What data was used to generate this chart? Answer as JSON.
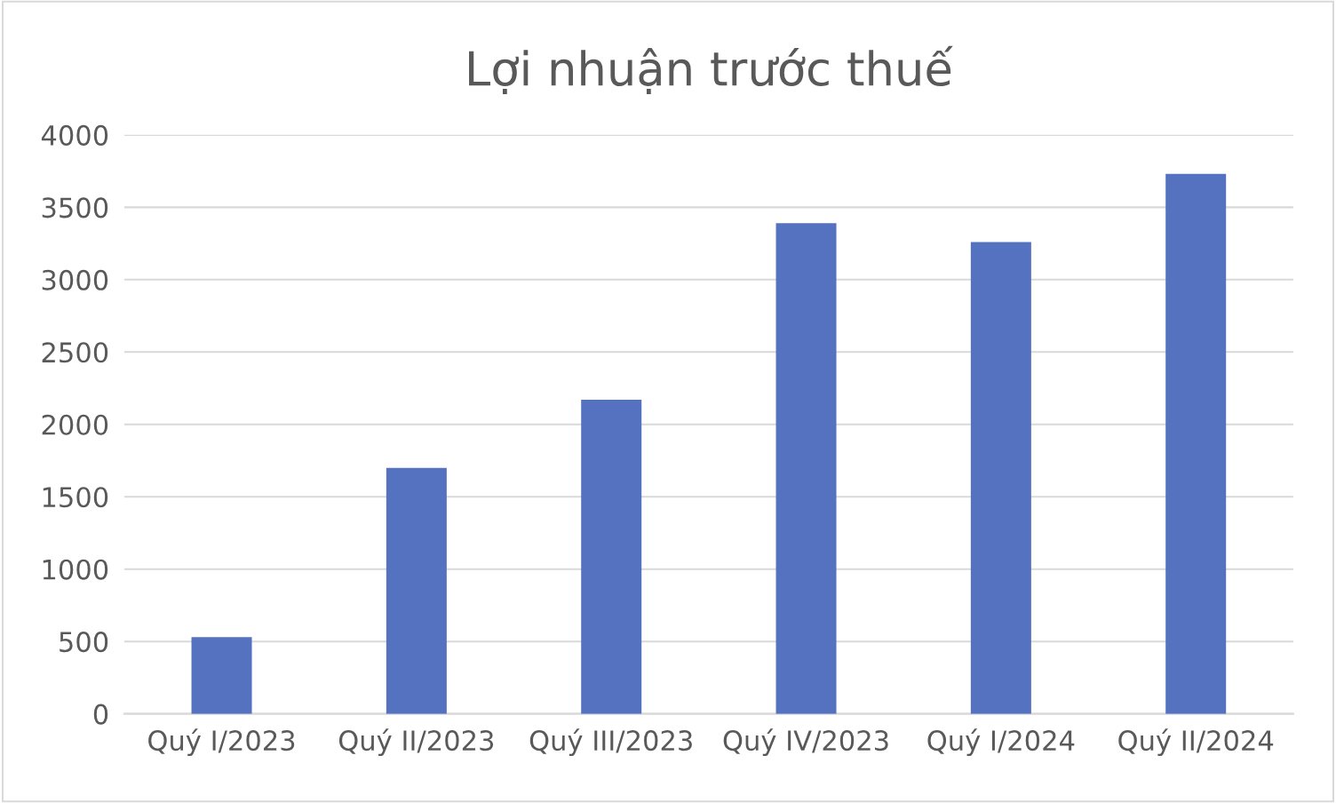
{
  "chart_data": {
    "type": "bar",
    "title": "Lợi nhuận trước thuế",
    "categories": [
      "Quý I/2023",
      "Quý II/2023",
      "Quý III/2023",
      "Quý IV/2023",
      "Quý I/2024",
      "Quý II/2024"
    ],
    "values": [
      530,
      1700,
      2170,
      3390,
      3260,
      3730
    ],
    "color": "#5572c0",
    "ylim": [
      0,
      4000
    ],
    "yticks": [
      0,
      500,
      1000,
      1500,
      2000,
      2500,
      3000,
      3500,
      4000
    ],
    "grid": "y",
    "legend": false
  }
}
